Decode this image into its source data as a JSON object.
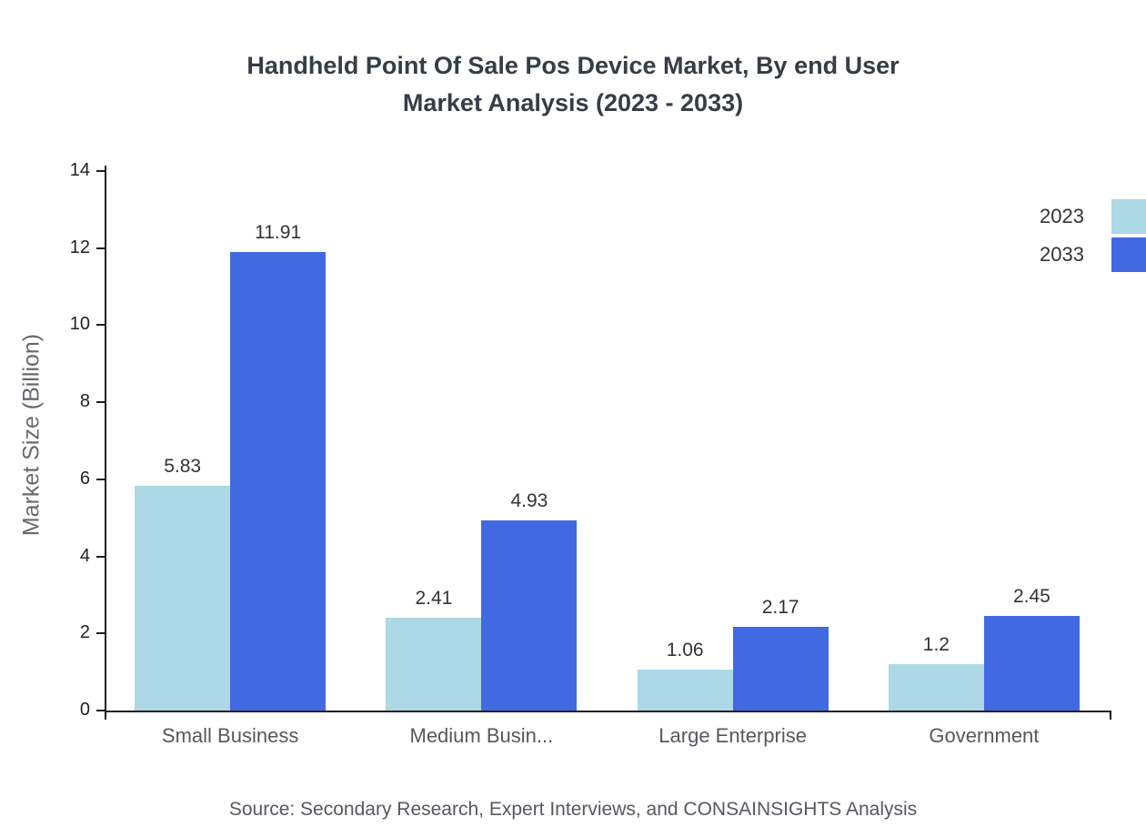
{
  "title": "Handheld Point Of Sale Pos Device Market, By end User\nMarket Analysis (2023 - 2033)",
  "source": "Source: Secondary Research, Expert Interviews, and CONSAINSIGHTS Analysis",
  "chart_data": {
    "type": "bar",
    "title": "Handheld Point Of Sale Pos Device Market, By end User Market Analysis (2023 - 2033)",
    "xlabel": "",
    "ylabel": "Market Size (Billion)",
    "categories": [
      "Small Business",
      "Medium Busin...",
      "Large Enterprise",
      "Government"
    ],
    "series": [
      {
        "name": "2023",
        "color": "#ADD8E6",
        "values": [
          5.83,
          2.41,
          1.06,
          1.2
        ]
      },
      {
        "name": "2033",
        "color": "#4169E1",
        "values": [
          11.91,
          4.93,
          2.17,
          2.45
        ]
      }
    ],
    "ylim": [
      0,
      14
    ],
    "yticks": [
      0,
      2,
      4,
      6,
      8,
      10,
      12,
      14
    ],
    "grid": false,
    "legend_position": "top-right"
  }
}
